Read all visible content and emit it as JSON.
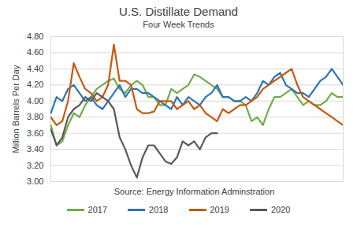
{
  "chart_data": {
    "type": "line",
    "title": "U.S. Distillate Demand",
    "subtitle": "Four Week Trends",
    "y_label": "Million Barrels Per Day",
    "annotation": "Source: Energy Information Adminstration",
    "x": [
      1,
      2,
      3,
      4,
      5,
      6,
      7,
      8,
      9,
      10,
      11,
      12,
      13,
      14,
      15,
      16,
      17,
      18,
      19,
      20,
      21,
      22,
      23,
      24,
      25,
      26,
      27,
      28,
      29,
      30,
      31,
      32,
      33,
      34,
      35,
      36,
      37,
      38,
      39,
      40,
      41,
      42,
      43,
      44,
      45,
      46,
      47,
      48,
      49,
      50,
      51,
      52
    ],
    "xlim": [
      1,
      52
    ],
    "ylim": [
      3.0,
      4.8
    ],
    "yticks": [
      {
        "value": 3.0,
        "label": "3.00"
      },
      {
        "value": 3.2,
        "label": "3.20"
      },
      {
        "value": 3.4,
        "label": "3.40"
      },
      {
        "value": 3.6,
        "label": "3.60"
      },
      {
        "value": 3.8,
        "label": "3.80"
      },
      {
        "value": 4.0,
        "label": "4.00"
      },
      {
        "value": 4.2,
        "label": "4.20"
      },
      {
        "value": 4.4,
        "label": "4.40"
      },
      {
        "value": 4.6,
        "label": "4.60"
      },
      {
        "value": 4.8,
        "label": "4.80"
      }
    ],
    "grid": true,
    "tick_labels": "y",
    "legend": "bottom",
    "series": [
      {
        "name": "2017",
        "color": "#70ad47",
        "values": [
          3.7,
          3.45,
          3.5,
          3.7,
          3.85,
          3.8,
          3.95,
          4.05,
          4.15,
          4.2,
          4.25,
          4.28,
          4.15,
          4.1,
          4.2,
          4.25,
          4.2,
          4.05,
          4.05,
          3.95,
          3.95,
          4.15,
          4.1,
          4.15,
          4.2,
          4.33,
          4.3,
          4.25,
          4.2,
          4.15,
          4.05,
          4.05,
          4.0,
          4.0,
          3.95,
          3.75,
          3.8,
          3.7,
          3.9,
          4.05,
          4.05,
          4.1,
          4.15,
          4.05,
          3.95,
          4.0,
          3.95,
          3.95,
          4.0,
          4.1,
          4.05,
          4.05
        ]
      },
      {
        "name": "2018",
        "color": "#2e75b6",
        "values": [
          3.85,
          4.05,
          4.0,
          4.15,
          4.2,
          4.1,
          4.0,
          4.05,
          3.95,
          3.9,
          4.0,
          4.1,
          4.2,
          4.05,
          4.15,
          4.15,
          4.1,
          4.1,
          4.05,
          4.0,
          3.95,
          3.9,
          4.05,
          3.95,
          4.05,
          4.0,
          3.95,
          4.05,
          4.1,
          4.2,
          4.05,
          4.05,
          4.0,
          4.0,
          4.05,
          4.0,
          4.1,
          4.25,
          4.2,
          4.3,
          4.35,
          4.2,
          4.15,
          4.1,
          4.1,
          4.05,
          4.15,
          4.25,
          4.3,
          4.4,
          4.3,
          4.2
        ]
      },
      {
        "name": "2019",
        "color": "#c55a11",
        "values": [
          3.8,
          3.7,
          3.75,
          4.0,
          4.47,
          4.3,
          4.15,
          4.1,
          4.0,
          4.05,
          4.2,
          4.7,
          4.25,
          4.25,
          4.2,
          3.9,
          3.85,
          3.85,
          3.87,
          4.0,
          4.0,
          4.0,
          3.9,
          3.95,
          4.0,
          3.9,
          3.95,
          3.85,
          3.8,
          3.75,
          3.9,
          3.85,
          3.9,
          3.95,
          3.95,
          4.0,
          4.05,
          4.15,
          4.2,
          4.25,
          4.3,
          4.35,
          4.4,
          4.2,
          4.05,
          4.0,
          3.95,
          3.9,
          3.85,
          3.8,
          3.75,
          3.7
        ]
      },
      {
        "name": "2020",
        "color": "#595959",
        "values": [
          3.65,
          3.45,
          3.55,
          3.8,
          3.9,
          3.95,
          4.05,
          4.0,
          4.1,
          4.05,
          4.0,
          3.9,
          3.55,
          3.4,
          3.2,
          3.05,
          3.3,
          3.45,
          3.45,
          3.35,
          3.25,
          3.22,
          3.3,
          3.5,
          3.45,
          3.5,
          3.4,
          3.55,
          3.6,
          3.6,
          null,
          null,
          null,
          null,
          null,
          null,
          null,
          null,
          null,
          null,
          null,
          null,
          null,
          null,
          null,
          null,
          null,
          null,
          null,
          null,
          null,
          null
        ]
      }
    ]
  }
}
